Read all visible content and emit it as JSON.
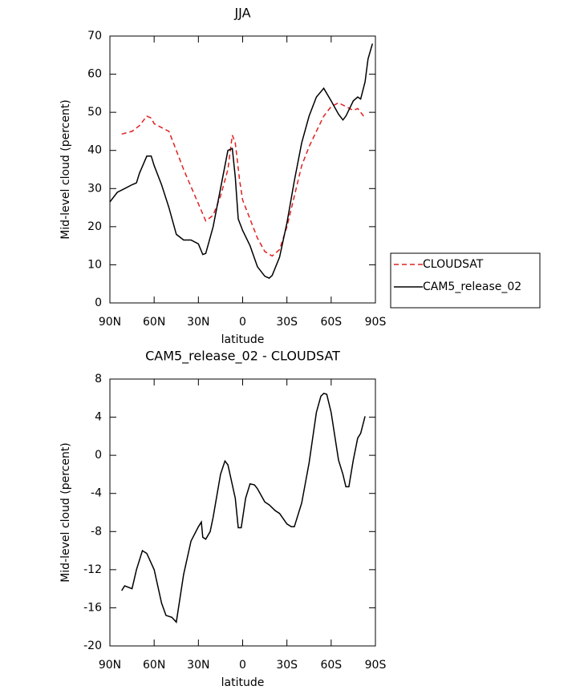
{
  "chart_data": [
    {
      "type": "line",
      "title": "JJA",
      "xlabel": "latitude",
      "ylabel": "Mid-level cloud (percent)",
      "xlim": [
        90,
        -90
      ],
      "xticks": [
        {
          "value": 90,
          "label": "90N"
        },
        {
          "value": 60,
          "label": "60N"
        },
        {
          "value": 30,
          "label": "30N"
        },
        0,
        {
          "value": -30,
          "label": "30S"
        },
        {
          "value": -60,
          "label": "60S"
        },
        {
          "value": -90,
          "label": "90S"
        }
      ],
      "ylim": [
        0,
        70
      ],
      "yticks": [
        0,
        10,
        20,
        30,
        40,
        50,
        60,
        70
      ],
      "legend": "right",
      "series": [
        {
          "name": "CLOUDSAT",
          "color": "#e02020",
          "dash": true,
          "x": [
            82,
            75,
            70,
            65,
            62,
            60,
            55,
            50,
            45,
            40,
            35,
            30,
            25,
            20,
            15,
            10,
            7,
            5,
            2,
            0,
            -5,
            -10,
            -15,
            -20,
            -25,
            -30,
            -35,
            -40,
            -45,
            -50,
            -55,
            -60,
            -65,
            -70,
            -75,
            -78,
            -82
          ],
          "values": [
            44.3,
            45,
            46.5,
            49,
            48.5,
            47,
            46,
            45,
            40,
            35,
            30.5,
            26,
            21.5,
            23,
            28,
            35,
            44,
            42,
            32,
            27,
            22,
            17,
            13.5,
            12.3,
            14,
            20,
            28,
            36,
            41,
            45,
            49,
            51.5,
            52.5,
            51.5,
            50.5,
            51,
            49
          ]
        },
        {
          "name": "CAM5_release_02",
          "color": "#000000",
          "dash": false,
          "x": [
            90,
            85,
            80,
            75,
            72,
            70,
            65,
            62,
            60,
            55,
            50,
            45,
            40,
            35,
            30,
            27,
            25,
            20,
            15,
            10,
            7,
            5,
            3,
            0,
            -5,
            -10,
            -15,
            -18,
            -20,
            -25,
            -30,
            -35,
            -40,
            -45,
            -50,
            -55,
            -60,
            -65,
            -68,
            -70,
            -75,
            -78,
            -80,
            -83,
            -85,
            -88
          ],
          "values": [
            26.5,
            29,
            30,
            31,
            31.5,
            34,
            38.5,
            38.5,
            36,
            31,
            25,
            18,
            16.5,
            16.5,
            15.5,
            12.7,
            13,
            20,
            30,
            40,
            40.5,
            33,
            22,
            19,
            15,
            9.5,
            7,
            6.5,
            7.2,
            12,
            21,
            32,
            42,
            49,
            54,
            56.3,
            53,
            49.5,
            48,
            49,
            53,
            54,
            53.5,
            58,
            64,
            68
          ]
        }
      ]
    },
    {
      "type": "line",
      "title": "CAM5_release_02 - CLOUDSAT",
      "xlabel": "latitude",
      "ylabel": "Mid-level cloud (percent)",
      "xlim": [
        90,
        -90
      ],
      "xticks": [
        {
          "value": 90,
          "label": "90N"
        },
        {
          "value": 60,
          "label": "60N"
        },
        {
          "value": 30,
          "label": "30N"
        },
        0,
        {
          "value": -30,
          "label": "30S"
        },
        {
          "value": -60,
          "label": "60S"
        },
        {
          "value": -90,
          "label": "90S"
        }
      ],
      "ylim": [
        -20,
        8
      ],
      "yticks": [
        -20,
        -16,
        -12,
        -8,
        -4,
        0,
        4,
        8
      ],
      "color": "#000000",
      "x": [
        82,
        80,
        75,
        72,
        68,
        65,
        60,
        55,
        52,
        48,
        45,
        40,
        35,
        30,
        28,
        27,
        25,
        22,
        20,
        15,
        12,
        10,
        5,
        3,
        1,
        -2,
        -5,
        -8,
        -10,
        -15,
        -18,
        -22,
        -25,
        -30,
        -33,
        -35,
        -40,
        -45,
        -50,
        -53,
        -55,
        -57,
        -60,
        -65,
        -68,
        -70,
        -72,
        -75,
        -78,
        -80,
        -83
      ],
      "values": [
        -14.2,
        -13.7,
        -14,
        -12,
        -10,
        -10.3,
        -12,
        -15.5,
        -16.8,
        -17,
        -17.5,
        -12.5,
        -9,
        -7.5,
        -7,
        -8.6,
        -8.8,
        -8,
        -6.5,
        -2,
        -0.6,
        -1,
        -4.5,
        -7.6,
        -7.6,
        -4.5,
        -3,
        -3.1,
        -3.5,
        -4.9,
        -5.2,
        -5.8,
        -6.1,
        -7.2,
        -7.5,
        -7.5,
        -5,
        -0.8,
        4.5,
        6.2,
        6.5,
        6.4,
        4.5,
        -0.5,
        -2,
        -3.3,
        -3.3,
        -0.5,
        1.8,
        2.3,
        4.1
      ]
    }
  ]
}
